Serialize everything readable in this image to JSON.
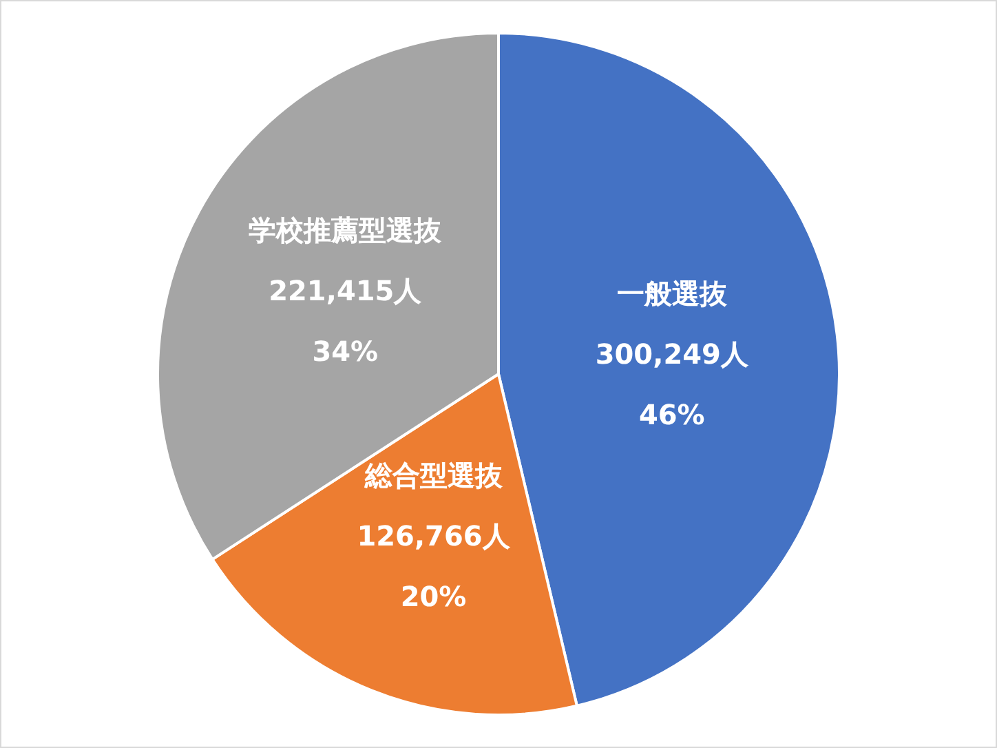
{
  "chart_data": {
    "type": "pie",
    "categories": [
      "一般選抜",
      "総合型選抜",
      "学校推薦型選抜"
    ],
    "values": [
      300249,
      126766,
      221415
    ],
    "colors": [
      "#4472c4",
      "#ed7d31",
      "#a5a5a5"
    ],
    "value_labels": [
      "300,249人\n46%",
      "126,766人\n20%",
      "221,415人\n34%"
    ],
    "legend": false
  }
}
